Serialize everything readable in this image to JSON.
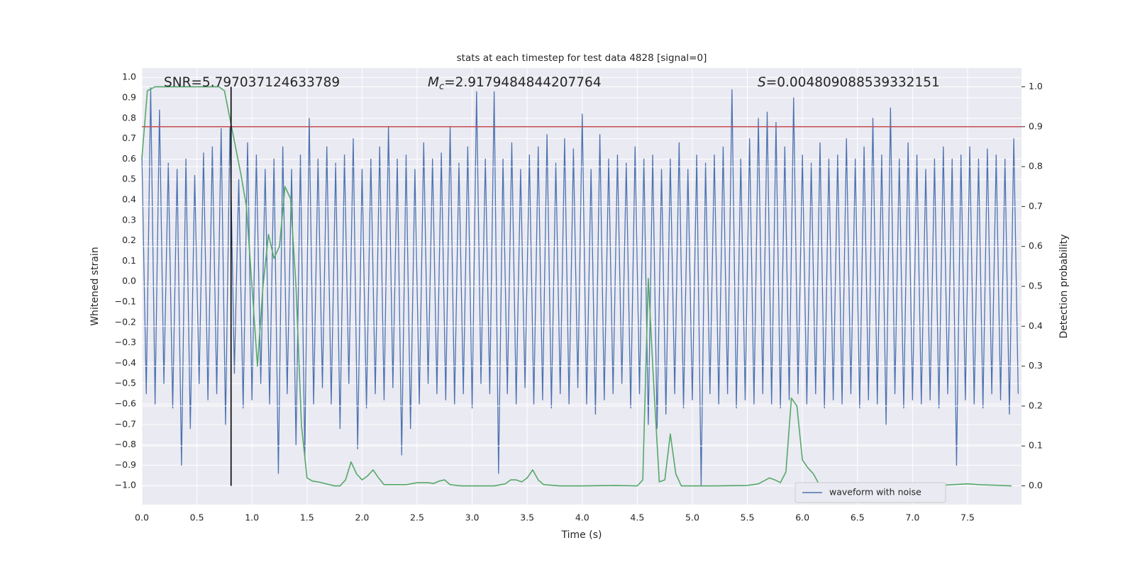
{
  "chart_data": {
    "type": "line",
    "title": "stats at each timestep for test data 4828 [signal=0]",
    "xlabel": "Time (s)",
    "ylabel": "Whitened strain",
    "y2label": "Detection probability",
    "annotations": [
      {
        "text": "SNR=5.797037124633789"
      },
      {
        "symbol": "M",
        "subscript": "c",
        "text": "=2.9179484844207764"
      },
      {
        "symbol": "S",
        "text": "=0.004809088539332151"
      }
    ],
    "xlim": [
      0,
      7.99
    ],
    "ylim": [
      -1.093,
      1.046
    ],
    "y2lim": [
      -0.047,
      1.047
    ],
    "xticks": [
      {
        "value": 0,
        "label": "0.0"
      },
      {
        "value": 0.5,
        "label": "0.5"
      },
      {
        "value": 1,
        "label": "1.0"
      },
      {
        "value": 1.5,
        "label": "1.5"
      },
      {
        "value": 2,
        "label": "2.0"
      },
      {
        "value": 2.5,
        "label": "2.5"
      },
      {
        "value": 3,
        "label": "3.0"
      },
      {
        "value": 3.5,
        "label": "3.5"
      },
      {
        "value": 4,
        "label": "4.0"
      },
      {
        "value": 4.5,
        "label": "4.5"
      },
      {
        "value": 5,
        "label": "5.0"
      },
      {
        "value": 5.5,
        "label": "5.5"
      },
      {
        "value": 6,
        "label": "6.0"
      },
      {
        "value": 6.5,
        "label": "6.5"
      },
      {
        "value": 7,
        "label": "7.0"
      },
      {
        "value": 7.5,
        "label": "7.5"
      }
    ],
    "yticks": [
      {
        "value": -1,
        "label": "−1.0"
      },
      {
        "value": -0.9,
        "label": "−0.9"
      },
      {
        "value": -0.8,
        "label": "−0.8"
      },
      {
        "value": -0.7,
        "label": "−0.7"
      },
      {
        "value": -0.6,
        "label": "−0.6"
      },
      {
        "value": -0.5,
        "label": "−0.5"
      },
      {
        "value": -0.4,
        "label": "−0.4"
      },
      {
        "value": -0.3,
        "label": "−0.3"
      },
      {
        "value": -0.2,
        "label": "−0.2"
      },
      {
        "value": -0.1,
        "label": "−0.1"
      },
      {
        "value": 0,
        "label": "0.0"
      },
      {
        "value": 0.1,
        "label": "0.1"
      },
      {
        "value": 0.2,
        "label": "0.2"
      },
      {
        "value": 0.3,
        "label": "0.3"
      },
      {
        "value": 0.4,
        "label": "0.4"
      },
      {
        "value": 0.5,
        "label": "0.5"
      },
      {
        "value": 0.6,
        "label": "0.6"
      },
      {
        "value": 0.7,
        "label": "0.7"
      },
      {
        "value": 0.8,
        "label": "0.8"
      },
      {
        "value": 0.9,
        "label": "0.9"
      },
      {
        "value": 1,
        "label": "1.0"
      }
    ],
    "y2ticks": [
      {
        "value": 0,
        "label": "0.0"
      },
      {
        "value": 0.1,
        "label": "0.1"
      },
      {
        "value": 0.2,
        "label": "0.2"
      },
      {
        "value": 0.3,
        "label": "0.3"
      },
      {
        "value": 0.4,
        "label": "0.4"
      },
      {
        "value": 0.5,
        "label": "0.5"
      },
      {
        "value": 0.6,
        "label": "0.6"
      },
      {
        "value": 0.7,
        "label": "0.7"
      },
      {
        "value": 0.8,
        "label": "0.8"
      },
      {
        "value": 0.9,
        "label": "0.9"
      },
      {
        "value": 1,
        "label": "1.0"
      }
    ],
    "grid": true,
    "legend": "lower right",
    "hlines": [
      {
        "axis": "y2",
        "value": 0.9,
        "color": "#c44e52"
      }
    ],
    "vlines": [
      {
        "axis": "y2",
        "x": 0.81,
        "ymin": 0,
        "ymax": 1,
        "color": "#000000"
      }
    ],
    "series": [
      {
        "name": "waveform with noise",
        "color": "#4c72b0",
        "x": [
          0,
          0.04,
          0.08,
          0.12,
          0.16,
          0.2,
          0.24,
          0.28,
          0.32,
          0.36,
          0.4,
          0.44,
          0.48,
          0.52,
          0.56,
          0.6,
          0.64,
          0.68,
          0.72,
          0.76,
          0.8,
          0.84,
          0.88,
          0.92,
          0.96,
          1,
          1.04,
          1.08,
          1.12,
          1.16,
          1.2,
          1.24,
          1.28,
          1.32,
          1.36,
          1.4,
          1.44,
          1.48,
          1.52,
          1.56,
          1.6,
          1.64,
          1.68,
          1.72,
          1.76,
          1.8,
          1.84,
          1.88,
          1.92,
          1.96,
          2,
          2.04,
          2.08,
          2.12,
          2.16,
          2.2,
          2.24,
          2.28,
          2.32,
          2.36,
          2.4,
          2.44,
          2.48,
          2.52,
          2.56,
          2.6,
          2.64,
          2.68,
          2.72,
          2.76,
          2.8,
          2.84,
          2.88,
          2.92,
          2.96,
          3,
          3.04,
          3.08,
          3.12,
          3.16,
          3.2,
          3.24,
          3.28,
          3.32,
          3.36,
          3.4,
          3.44,
          3.48,
          3.52,
          3.56,
          3.6,
          3.64,
          3.68,
          3.72,
          3.76,
          3.8,
          3.84,
          3.88,
          3.92,
          3.96,
          4,
          4.04,
          4.08,
          4.12,
          4.16,
          4.2,
          4.24,
          4.28,
          4.32,
          4.36,
          4.4,
          4.44,
          4.48,
          4.52,
          4.56,
          4.6,
          4.64,
          4.68,
          4.72,
          4.76,
          4.8,
          4.84,
          4.88,
          4.92,
          4.96,
          5,
          5.04,
          5.08,
          5.12,
          5.16,
          5.2,
          5.24,
          5.28,
          5.32,
          5.36,
          5.4,
          5.44,
          5.48,
          5.52,
          5.56,
          5.6,
          5.64,
          5.68,
          5.72,
          5.76,
          5.8,
          5.84,
          5.88,
          5.92,
          5.96,
          6,
          6.04,
          6.08,
          6.12,
          6.16,
          6.2,
          6.24,
          6.28,
          6.32,
          6.36,
          6.4,
          6.44,
          6.48,
          6.52,
          6.56,
          6.6,
          6.64,
          6.68,
          6.72,
          6.76,
          6.8,
          6.84,
          6.88,
          6.92,
          6.96,
          7,
          7.04,
          7.08,
          7.12,
          7.16,
          7.2,
          7.24,
          7.28,
          7.32,
          7.36,
          7.4,
          7.44,
          7.48,
          7.52,
          7.56,
          7.6,
          7.64,
          7.68,
          7.72,
          7.76,
          7.8,
          7.84,
          7.88,
          7.92,
          7.96
        ],
        "values": [
          0.62,
          -0.55,
          0.95,
          -0.6,
          0.84,
          -0.5,
          0.58,
          -0.62,
          0.55,
          -0.9,
          0.6,
          -0.72,
          0.52,
          -0.5,
          0.63,
          -0.58,
          0.66,
          -0.55,
          0.75,
          -0.7,
          0.76,
          -0.45,
          0.5,
          -0.62,
          0.68,
          -0.58,
          0.62,
          -0.5,
          0.55,
          -0.6,
          0.6,
          -0.94,
          0.66,
          -0.55,
          0.55,
          -0.8,
          0.62,
          -0.86,
          0.8,
          -0.6,
          0.6,
          -0.52,
          0.66,
          -0.6,
          0.58,
          -0.72,
          0.62,
          -0.5,
          0.7,
          -0.82,
          0.55,
          -0.62,
          0.6,
          -0.55,
          0.66,
          -0.58,
          0.76,
          -0.52,
          0.6,
          -0.85,
          0.62,
          -0.72,
          0.55,
          -0.6,
          0.68,
          -0.5,
          0.6,
          -0.55,
          0.63,
          -0.58,
          0.76,
          -0.6,
          0.58,
          -0.55,
          0.66,
          -0.62,
          0.93,
          -0.5,
          0.6,
          -0.55,
          0.93,
          -0.94,
          0.6,
          -0.55,
          0.68,
          -0.6,
          0.55,
          -0.52,
          0.62,
          -0.6,
          0.66,
          -0.58,
          0.72,
          -0.62,
          0.58,
          -0.55,
          0.7,
          -0.6,
          0.65,
          -0.52,
          0.82,
          -0.6,
          0.55,
          -0.65,
          0.72,
          -0.58,
          0.6,
          -0.55,
          0.62,
          -0.5,
          0.58,
          -0.62,
          0.66,
          -0.55,
          0.6,
          -0.7,
          0.62,
          -0.72,
          0.55,
          -0.65,
          0.6,
          -0.55,
          0.68,
          -0.62,
          0.55,
          -0.58,
          0.62,
          -1.0,
          0.58,
          -0.55,
          0.62,
          -0.6,
          0.66,
          -0.55,
          0.94,
          -0.62,
          0.6,
          -0.58,
          0.7,
          -0.6,
          0.8,
          -0.55,
          0.83,
          -0.6,
          0.78,
          -0.62,
          0.66,
          -0.58,
          0.9,
          -0.55,
          0.62,
          -0.6,
          0.58,
          -0.55,
          0.68,
          -0.62,
          0.6,
          -0.58,
          0.62,
          -0.6,
          0.7,
          -0.55,
          0.6,
          -0.62,
          0.66,
          -0.58,
          0.8,
          -0.6,
          0.62,
          -0.7,
          0.85,
          -0.55,
          0.6,
          -0.62,
          0.68,
          -0.58,
          0.62,
          -0.6,
          0.55,
          -0.58,
          0.6,
          -0.62,
          0.66,
          -0.55,
          0.6,
          -0.9,
          0.62,
          -0.58,
          0.66,
          -0.6,
          0.6,
          -0.62,
          0.65,
          -0.55,
          0.62,
          -0.58,
          0.6,
          -0.65,
          0.7,
          -0.55
        ]
      },
      {
        "color": "#55a868",
        "axis": "y2",
        "x": [
          0,
          0.05,
          0.12,
          0.5,
          0.7,
          0.75,
          0.8,
          0.85,
          0.9,
          0.95,
          1,
          1.05,
          1.1,
          1.15,
          1.2,
          1.25,
          1.3,
          1.35,
          1.4,
          1.45,
          1.5,
          1.55,
          1.6,
          1.75,
          1.8,
          1.85,
          1.9,
          1.95,
          2,
          2.05,
          2.1,
          2.15,
          2.2,
          2.3,
          2.4,
          2.5,
          2.6,
          2.65,
          2.7,
          2.75,
          2.8,
          2.9,
          3,
          3.1,
          3.2,
          3.3,
          3.35,
          3.4,
          3.45,
          3.5,
          3.55,
          3.6,
          3.65,
          3.8,
          4,
          4.3,
          4.5,
          4.55,
          4.6,
          4.65,
          4.7,
          4.75,
          4.8,
          4.85,
          4.9,
          5,
          5.2,
          5.5,
          5.6,
          5.7,
          5.75,
          5.8,
          5.85,
          5.9,
          5.95,
          6,
          6.05,
          6.1,
          6.15,
          6.2,
          6.5,
          6.7,
          7,
          7.2,
          7.3,
          7.5,
          7.6,
          7.9
        ],
        "values": [
          0.82,
          0.99,
          1,
          1,
          1,
          0.99,
          0.92,
          0.85,
          0.78,
          0.7,
          0.5,
          0.3,
          0.5,
          0.63,
          0.57,
          0.6,
          0.75,
          0.72,
          0.5,
          0.15,
          0.02,
          0.012,
          0.01,
          0,
          0,
          0.015,
          0.06,
          0.03,
          0.015,
          0.025,
          0.04,
          0.02,
          0.003,
          0.003,
          0.003,
          0.008,
          0.008,
          0.006,
          0.012,
          0.015,
          0.003,
          0,
          0,
          0,
          0,
          0.005,
          0.015,
          0.015,
          0.01,
          0.02,
          0.04,
          0.015,
          0.003,
          0,
          0,
          0.001,
          0,
          0.015,
          0.52,
          0.25,
          0.01,
          0.015,
          0.13,
          0.03,
          0,
          0,
          0,
          0.001,
          0.005,
          0.02,
          0.015,
          0.008,
          0.035,
          0.22,
          0.2,
          0.065,
          0.045,
          0.03,
          0.005,
          0,
          0.005,
          0.003,
          0.003,
          0.005,
          0.002,
          0.005,
          0.003,
          0
        ]
      }
    ]
  }
}
